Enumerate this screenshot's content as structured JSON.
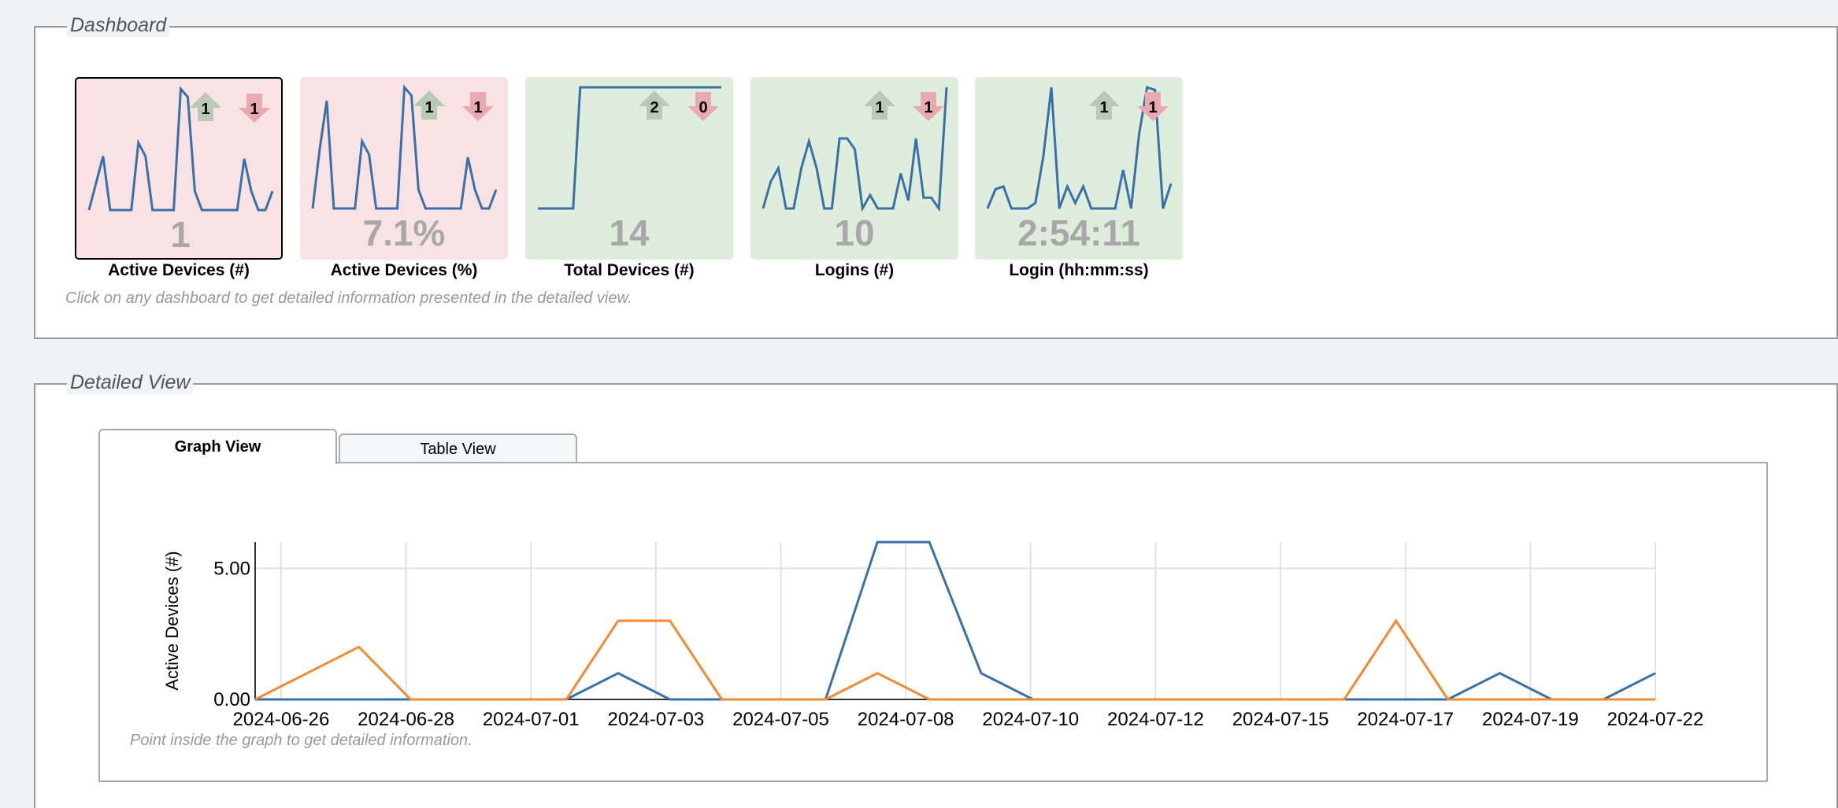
{
  "dashboard": {
    "legend": "Dashboard",
    "cards": [
      {
        "label": "Active Devices (#)",
        "value": "1",
        "up": 1,
        "down": 1,
        "status": "bad",
        "selected": true,
        "spark": [
          0,
          1,
          2,
          0,
          0,
          0,
          0,
          2.5,
          2,
          0,
          0,
          0,
          0,
          4.5,
          4.2,
          0.7,
          0,
          0,
          0,
          0,
          0,
          0,
          1.9,
          0.7,
          0,
          0,
          0.7
        ]
      },
      {
        "label": "Active Devices (%)",
        "value": "7.1%",
        "up": 1,
        "down": 1,
        "status": "bad",
        "selected": false,
        "spark": [
          0,
          2.2,
          4,
          0,
          0,
          0,
          0,
          2.5,
          2,
          0,
          0,
          0,
          0,
          4.5,
          4.2,
          0.7,
          0,
          0,
          0,
          0,
          0,
          0,
          1.9,
          0.7,
          0,
          0,
          0.7
        ]
      },
      {
        "label": "Total Devices (#)",
        "value": "14",
        "up": 2,
        "down": 0,
        "status": "good",
        "selected": false,
        "spark": [
          0,
          0,
          0,
          0,
          0,
          0,
          1,
          1,
          1,
          1,
          1,
          1,
          1,
          1,
          1,
          1,
          1,
          1,
          1,
          1,
          1,
          1,
          1,
          1,
          1,
          1,
          1
        ]
      },
      {
        "label": "Logins (#)",
        "value": "10",
        "up": 1,
        "down": 1,
        "status": "good",
        "selected": false,
        "spark": [
          0,
          1,
          1.5,
          0,
          0,
          1.5,
          2.5,
          1.5,
          0,
          0,
          2.6,
          2.6,
          2.2,
          0,
          0.5,
          0,
          0,
          0,
          1.3,
          0.3,
          2.6,
          0.4,
          0.4,
          0,
          4.5
        ]
      },
      {
        "label": "Login (hh:mm:ss)",
        "value": "2:54:11",
        "up": 1,
        "down": 1,
        "status": "good",
        "selected": false,
        "spark": [
          0,
          0.7,
          0.8,
          0,
          0,
          0,
          0.2,
          1.9,
          4.4,
          0,
          0.8,
          0.2,
          0.8,
          0,
          0,
          0,
          0,
          1.4,
          0,
          2.7,
          4.4,
          4.3,
          0,
          0.9
        ]
      }
    ],
    "hint": "Click on any dashboard to get detailed information presented in the detailed view."
  },
  "detail": {
    "legend": "Detailed View",
    "tabs": [
      "Graph View",
      "Table View"
    ],
    "hint": "Point inside the graph to get detailed information."
  },
  "chart_data": {
    "type": "line",
    "y_label": "Active Devices (#)",
    "x": [
      "2024-06-25",
      "2024-06-26",
      "2024-06-27",
      "2024-06-28",
      "2024-06-29",
      "2024-06-30",
      "2024-07-01",
      "2024-07-02",
      "2024-07-03",
      "2024-07-04",
      "2024-07-05",
      "2024-07-06",
      "2024-07-07",
      "2024-07-08",
      "2024-07-09",
      "2024-07-10",
      "2024-07-11",
      "2024-07-12",
      "2024-07-13",
      "2024-07-14",
      "2024-07-15",
      "2024-07-16",
      "2024-07-17",
      "2024-07-18",
      "2024-07-19",
      "2024-07-20",
      "2024-07-21",
      "2024-07-22"
    ],
    "series": [
      {
        "color": "#3a70a8",
        "values": [
          0,
          0,
          0,
          0,
          0,
          0,
          0,
          1,
          0,
          0,
          0,
          0,
          6,
          6,
          1,
          0,
          0,
          0,
          0,
          0,
          0,
          0,
          0,
          0,
          1,
          0,
          0,
          1
        ]
      },
      {
        "color": "#f28a30",
        "values": [
          0,
          1,
          2,
          0,
          0,
          0,
          0,
          3,
          3,
          0,
          0,
          0,
          1,
          0,
          0,
          0,
          0,
          0,
          0,
          0,
          0,
          0,
          3,
          0,
          0,
          0,
          0,
          0
        ]
      }
    ],
    "ylim": [
      0,
      6
    ],
    "yticks": [
      {
        "value": 0,
        "label": "0.00"
      },
      {
        "value": 5,
        "label": "5.00"
      }
    ],
    "xticks": [
      "2024-06-26",
      "2024-06-28",
      "2024-07-01",
      "2024-07-03",
      "2024-07-05",
      "2024-07-08",
      "2024-07-10",
      "2024-07-12",
      "2024-07-15",
      "2024-07-17",
      "2024-07-19",
      "2024-07-22"
    ],
    "grid": true
  }
}
